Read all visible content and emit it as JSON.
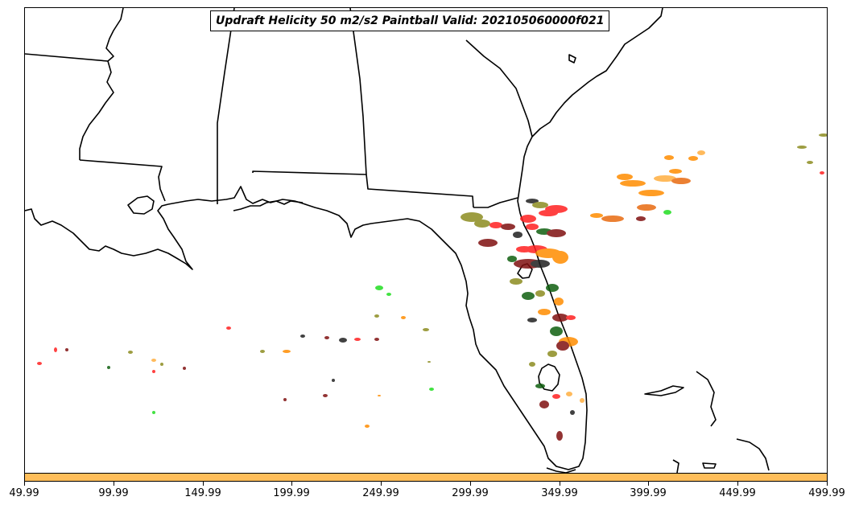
{
  "title": "Updraft Helicity 50 m2/s2 Paintball Valid: 202105060000f021",
  "colorbar": {
    "color": "#ffbe5a",
    "tick_labels": [
      "49.99",
      "99.99",
      "149.99",
      "199.99",
      "249.99",
      "299.99",
      "349.99",
      "399.99",
      "449.99",
      "499.99"
    ],
    "range": [
      49.99,
      499.99
    ]
  },
  "paintball_colors": {
    "red": "#ff2020",
    "orange": "#ff8c00",
    "dark_orange": "#e86a10",
    "olive": "#8c8c20",
    "dark_green": "#106010",
    "bright_green": "#22dd22",
    "dark_red": "#801010",
    "near_black": "#202020",
    "light_orange": "#ffae40"
  },
  "map": {
    "region": "Southeastern United States and Gulf of Mexico",
    "features": [
      "state boundaries",
      "coastlines",
      "Florida peninsula",
      "Bahamas"
    ]
  }
}
